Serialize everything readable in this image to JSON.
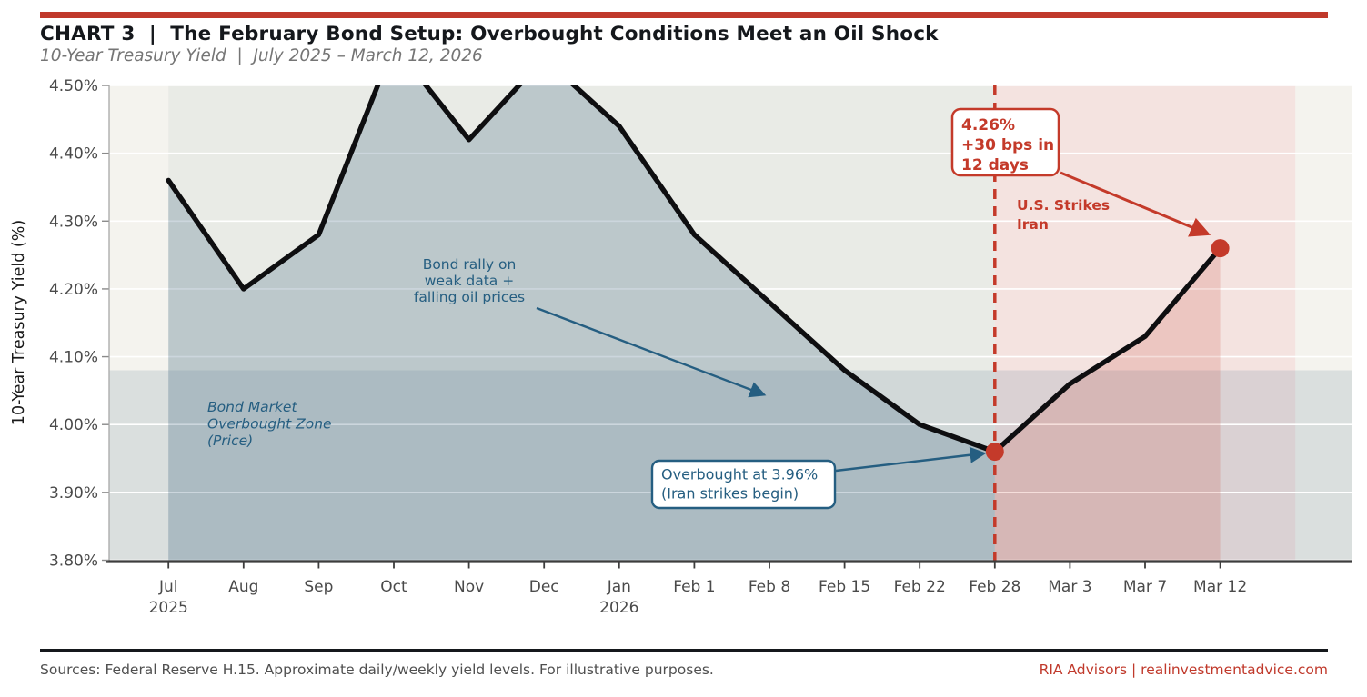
{
  "header": {
    "title": "CHART 3  |  The February Bond Setup: Overbought Conditions Meet an Oil Shock",
    "subtitle": "10-Year Treasury Yield  |  July 2025 – March 12, 2026"
  },
  "footer": {
    "sources": "Sources: Federal Reserve H.15. Approximate daily/weekly yield levels. For illustrative purposes.",
    "brand": "RIA Advisors | realinvestmentadvice.com"
  },
  "colors": {
    "accent_red": "#c43a2a",
    "brand_bar_red": "#c0392b",
    "annotation_blue": "#255e81",
    "line_black": "#0e0e10",
    "plot_bg": "#f4f3ee",
    "pre_span": "#e9ebe6",
    "shock_span": "#f4e3e0",
    "overbought_band": "rgba(85,120,142,0.16)",
    "area_blue": "rgba(85,120,142,0.30)",
    "area_red": "rgba(196,58,42,0.17)",
    "gridline": "#ffffff",
    "tick_label": "#4a4a4a",
    "axis_dark": "#3d3d3d",
    "axis_light": "#adadad"
  },
  "chart_data": {
    "type": "line",
    "title": "CHART 3 | The February Bond Setup: Overbought Conditions Meet an Oil Shock",
    "subtitle": "10-Year Treasury Yield | July 2025 – March 12, 2026",
    "series_name": "10-Year Treasury Yield",
    "categories": [
      "Jul",
      "Aug",
      "Sep",
      "Oct",
      "Nov",
      "Dec",
      "Jan",
      "Feb 1",
      "Feb 8",
      "Feb 15",
      "Feb 22",
      "Feb 28",
      "Mar 3",
      "Mar 7",
      "Mar 12"
    ],
    "year_markers": [
      {
        "index": 0,
        "label": "2025"
      },
      {
        "index": 6,
        "label": "2026"
      }
    ],
    "values": [
      4.36,
      4.2,
      4.28,
      4.56,
      4.42,
      4.54,
      4.44,
      4.28,
      4.18,
      4.08,
      4.0,
      3.96,
      4.06,
      4.13,
      4.26
    ],
    "clip_to_ylim": true,
    "ylabel": "10-Year Treasury Yield (%)",
    "ylim": [
      3.8,
      4.5
    ],
    "yticks": [
      {
        "value": 3.8,
        "label": "3.80%"
      },
      {
        "value": 3.9,
        "label": "3.90%"
      },
      {
        "value": 4.0,
        "label": "4.00%"
      },
      {
        "value": 4.1,
        "label": "4.10%"
      },
      {
        "value": 4.2,
        "label": "4.20%"
      },
      {
        "value": 4.3,
        "label": "4.30%"
      },
      {
        "value": 4.4,
        "label": "4.40%"
      },
      {
        "value": 4.5,
        "label": "4.50%"
      }
    ],
    "grid": true,
    "legend": "none",
    "overbought_zone_top": 4.08,
    "event_line_index": 11,
    "pre_span_indices": [
      0,
      11
    ],
    "shock_span_indices": [
      11,
      15
    ],
    "key_points": [
      {
        "index": 11,
        "value": 3.96
      },
      {
        "index": 14,
        "value": 4.26
      }
    ],
    "annotations": {
      "peak_callout": {
        "lines": [
          "4.26%",
          "+30 bps in",
          "12 days"
        ]
      },
      "strike_label": {
        "lines": [
          "U.S. Strikes",
          "Iran"
        ]
      },
      "rally_note": {
        "lines": [
          "Bond rally on",
          "weak data +",
          "falling oil prices"
        ]
      },
      "zone_label": {
        "lines": [
          "Bond Market",
          "Overbought Zone",
          "(Price)"
        ]
      },
      "overbought_callout": {
        "lines": [
          "Overbought at 3.96%",
          "(Iran strikes begin)"
        ]
      }
    }
  }
}
